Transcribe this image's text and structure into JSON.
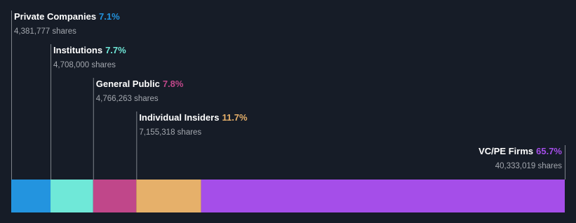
{
  "chart_data": {
    "type": "bar",
    "stacked": true,
    "orientation": "horizontal",
    "series": [
      {
        "name": "Private Companies",
        "color": "#2394df",
        "values": [
          7.1
        ],
        "value_labels": [
          "7.1%"
        ],
        "share_label": "4,381,777 shares"
      },
      {
        "name": "Institutions",
        "color": "#6fe8d8",
        "values": [
          7.7
        ],
        "value_labels": [
          "7.7%"
        ],
        "share_label": "4,708,000 shares"
      },
      {
        "name": "General Public",
        "color": "#c0478a",
        "values": [
          7.8
        ],
        "value_labels": [
          "7.8%"
        ],
        "share_label": "4,766,263 shares"
      },
      {
        "name": "Individual Insiders",
        "color": "#e6b06a",
        "values": [
          11.7
        ],
        "value_labels": [
          "11.7%"
        ],
        "share_label": "7,155,318 shares"
      },
      {
        "name": "VC/PE Firms",
        "color": "#a54ee9",
        "values": [
          65.7
        ],
        "value_labels": [
          "65.7%"
        ],
        "share_label": "40,333,019 shares"
      }
    ]
  }
}
